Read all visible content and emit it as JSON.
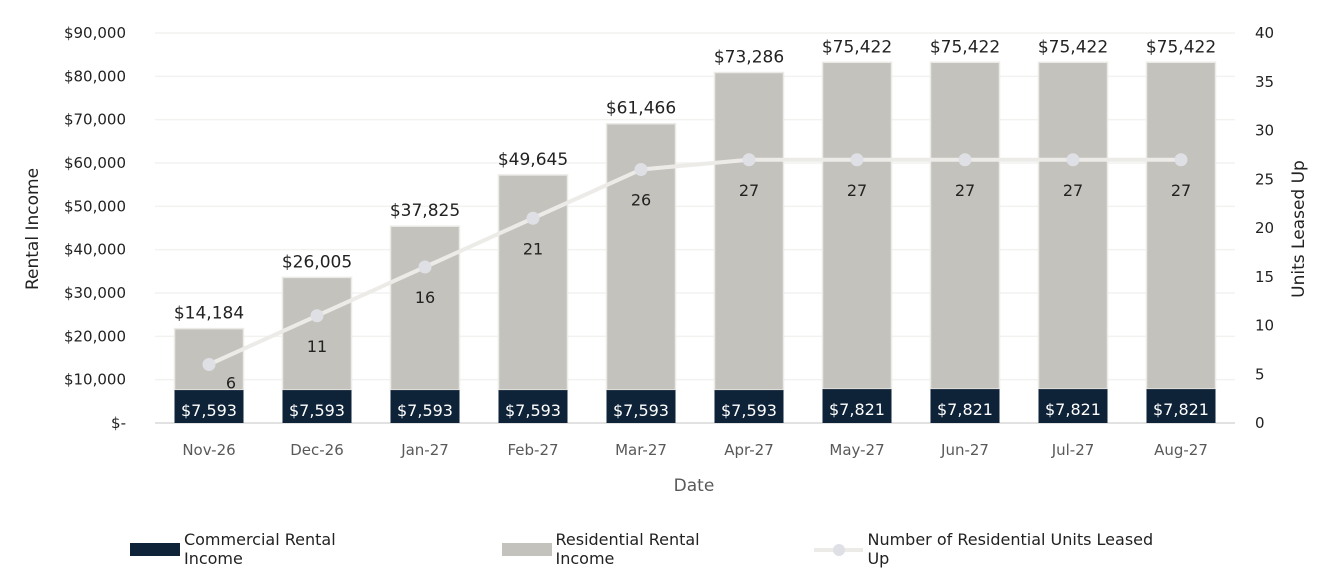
{
  "chart_data": {
    "type": "bar",
    "subtype": "stacked bar + line (dual axis)",
    "title": "",
    "xlabel": "Date",
    "ylabel": "Rental Income",
    "y2label": "Units Leased Up",
    "ylim": [
      0,
      90000
    ],
    "y2lim": [
      0,
      40
    ],
    "yticks": [
      "$-",
      "$10,000",
      "$20,000",
      "$30,000",
      "$40,000",
      "$50,000",
      "$60,000",
      "$70,000",
      "$80,000",
      "$90,000"
    ],
    "y2ticks": [
      "0",
      "5",
      "10",
      "15",
      "20",
      "25",
      "30",
      "35",
      "40"
    ],
    "grid": true,
    "legend_position": "bottom",
    "categories": [
      "Nov-26",
      "Dec-26",
      "Jan-27",
      "Feb-27",
      "Mar-27",
      "Apr-27",
      "May-27",
      "Jun-27",
      "Jul-27",
      "Aug-27"
    ],
    "series": [
      {
        "name": "Commercial Rental Income",
        "type": "bar",
        "stack": "income",
        "color": "#0e2238",
        "values": [
          7593,
          7593,
          7593,
          7593,
          7593,
          7593,
          7821,
          7821,
          7821,
          7821
        ],
        "labels": [
          "$7,593",
          "$7,593",
          "$7,593",
          "$7,593",
          "$7,593",
          "$7,593",
          "$7,821",
          "$7,821",
          "$7,821",
          "$7,821"
        ]
      },
      {
        "name": "Residential Rental Income",
        "type": "bar",
        "stack": "income",
        "color": "#c4c2bc",
        "values": [
          14184,
          26005,
          37825,
          49645,
          61466,
          73286,
          75422,
          75422,
          75422,
          75422
        ],
        "labels": [
          "$14,184",
          "$26,005",
          "$37,825",
          "$49,645",
          "$61,466",
          "$73,286",
          "$75,422",
          "$75,422",
          "$75,422",
          "$75,422"
        ]
      },
      {
        "name": "Number of Residential Units Leased Up",
        "type": "line",
        "axis": "right",
        "color": "#ecebe8",
        "values": [
          6,
          11,
          16,
          21,
          26,
          27,
          27,
          27,
          27,
          27
        ],
        "labels": [
          "6",
          "11",
          "16",
          "21",
          "26",
          "27",
          "27",
          "27",
          "27",
          "27"
        ]
      }
    ]
  },
  "legend": {
    "items": [
      {
        "label": "Commercial Rental Income",
        "color": "#0e2238"
      },
      {
        "label": "Residential Rental Income",
        "color": "#c4c2bc"
      },
      {
        "label": "Number of Residential Units Leased Up",
        "color": "#ecebe8"
      }
    ]
  }
}
